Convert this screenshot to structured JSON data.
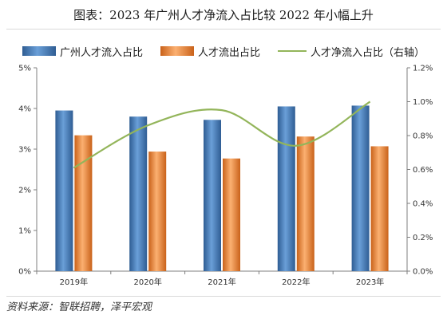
{
  "chart_data": {
    "type": "bar",
    "title": "图表：2023 年广州人才净流入占比较 2022 年小幅上升",
    "categories": [
      "2019年",
      "2020年",
      "2021年",
      "2022年",
      "2023年"
    ],
    "series": [
      {
        "name": "广州人才流入占比",
        "type": "bar",
        "axis": "left",
        "color": "#4f81bd",
        "values": [
          3.95,
          3.8,
          3.72,
          4.05,
          4.07
        ]
      },
      {
        "name": "人才流出占比",
        "type": "bar",
        "axis": "left",
        "color": "#f79646",
        "values": [
          3.34,
          2.94,
          2.77,
          3.31,
          3.07
        ]
      },
      {
        "name": "人才净流入占比（右轴）",
        "type": "line",
        "axis": "right",
        "color": "#93b55a",
        "values": [
          0.61,
          0.86,
          0.95,
          0.74,
          1.0
        ]
      }
    ],
    "y_left": {
      "ticks": [
        "0%",
        "1%",
        "2%",
        "3%",
        "4%",
        "5%"
      ],
      "ylim": [
        0,
        5
      ]
    },
    "y_right": {
      "ticks": [
        "0.0%",
        "0.2%",
        "0.4%",
        "0.6%",
        "0.8%",
        "1.0%",
        "1.2%"
      ],
      "ylim": [
        0,
        1.2
      ]
    },
    "legend_position": "top",
    "grid": false
  },
  "source": "资料来源：智联招聘，泽平宏观"
}
